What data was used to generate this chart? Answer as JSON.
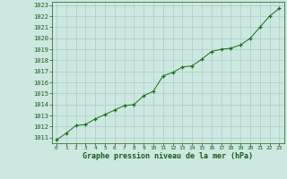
{
  "x": [
    0,
    1,
    2,
    3,
    4,
    5,
    6,
    7,
    8,
    9,
    10,
    11,
    12,
    13,
    14,
    15,
    16,
    17,
    18,
    19,
    20,
    21,
    22,
    23
  ],
  "y": [
    1010.8,
    1011.4,
    1012.1,
    1012.2,
    1012.7,
    1013.1,
    1013.5,
    1013.9,
    1014.0,
    1014.8,
    1015.2,
    1016.6,
    1016.9,
    1017.4,
    1017.5,
    1018.1,
    1018.8,
    1019.0,
    1019.1,
    1019.4,
    1020.0,
    1021.0,
    1022.0,
    1022.7
  ],
  "line_color": "#1a6e1a",
  "marker_color": "#1a6e1a",
  "bg_color": "#cce8e0",
  "grid_color": "#aacccc",
  "xlabel": "Graphe pression niveau de la mer (hPa)",
  "xlabel_color": "#1a5c1a",
  "tick_color": "#1a5c1a",
  "ylim": [
    1011,
    1023
  ],
  "xlim": [
    -0.5,
    23.5
  ],
  "yticks": [
    1011,
    1012,
    1013,
    1014,
    1015,
    1016,
    1017,
    1018,
    1019,
    1020,
    1021,
    1022,
    1023
  ],
  "xticks": [
    0,
    1,
    2,
    3,
    4,
    5,
    6,
    7,
    8,
    9,
    10,
    11,
    12,
    13,
    14,
    15,
    16,
    17,
    18,
    19,
    20,
    21,
    22,
    23
  ]
}
